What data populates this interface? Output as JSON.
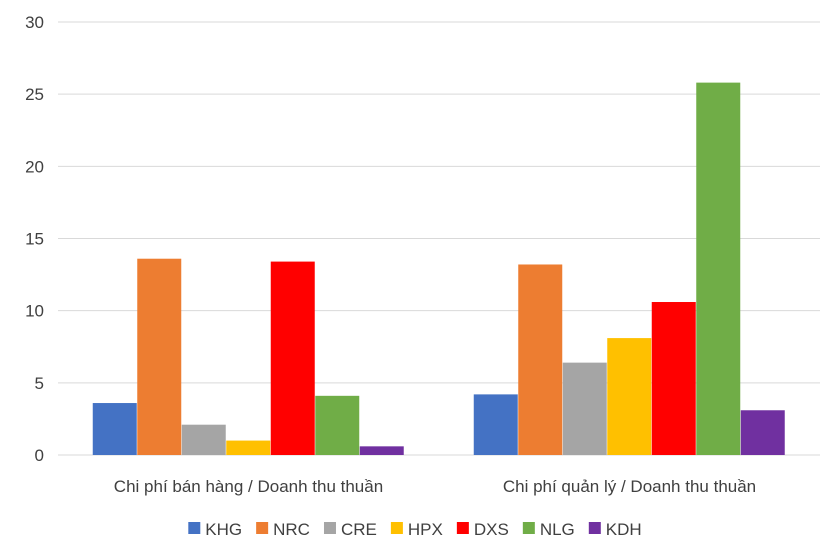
{
  "chart_data": {
    "type": "bar",
    "title": "",
    "xlabel": "",
    "ylabel": "",
    "ylim": [
      0,
      30
    ],
    "yticks": [
      0,
      5,
      10,
      15,
      20,
      25,
      30
    ],
    "grid": true,
    "legend_position": "bottom",
    "categories": [
      "Chi phí bán hàng / Doanh thu thuần",
      "Chi phí quản lý / Doanh thu thuần"
    ],
    "series": [
      {
        "name": "KHG",
        "color": "#4472C4",
        "values": [
          3.6,
          4.2
        ]
      },
      {
        "name": "NRC",
        "color": "#ED7D31",
        "values": [
          13.6,
          13.2
        ]
      },
      {
        "name": "CRE",
        "color": "#A5A5A5",
        "values": [
          2.1,
          6.4
        ]
      },
      {
        "name": "HPX",
        "color": "#FFC000",
        "values": [
          1.0,
          8.1
        ]
      },
      {
        "name": "DXS",
        "color": "#FF0000",
        "values": [
          13.4,
          10.6
        ]
      },
      {
        "name": "NLG",
        "color": "#70AD47",
        "values": [
          4.1,
          25.8
        ]
      },
      {
        "name": "KDH",
        "color": "#7030A0",
        "values": [
          0.6,
          3.1
        ]
      }
    ]
  }
}
